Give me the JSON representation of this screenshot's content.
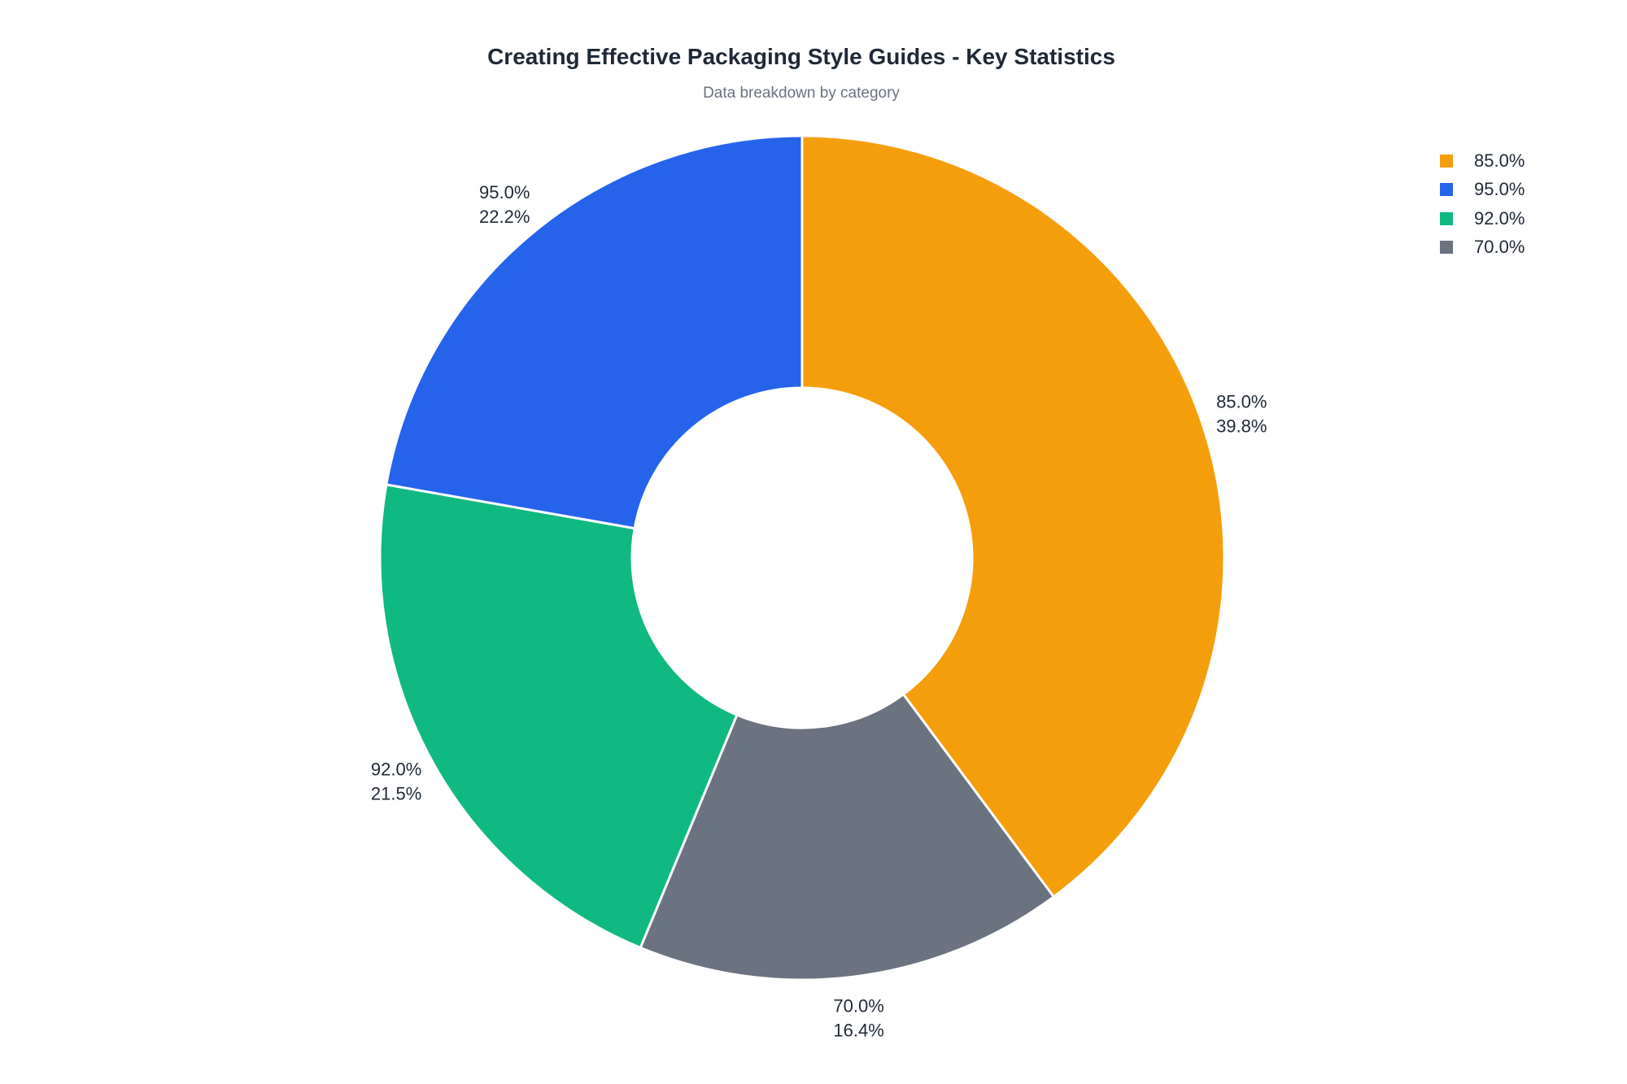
{
  "chart_data": {
    "type": "pie",
    "donut": true,
    "title": "Creating Effective Packaging Style Guides - Key Statistics",
    "subtitle": "Data breakdown by category",
    "legend_placement": "top-right",
    "slices": [
      {
        "label": "85.0%",
        "share": 39.8,
        "share_label": "39.8%",
        "color": "#f59e0b"
      },
      {
        "label": "95.0%",
        "share": 22.2,
        "share_label": "22.2%",
        "color": "#2563eb"
      },
      {
        "label": "92.0%",
        "share": 21.5,
        "share_label": "21.5%",
        "color": "#10b981"
      },
      {
        "label": "70.0%",
        "share": 16.4,
        "share_label": "16.4%",
        "color": "#6b7280"
      }
    ],
    "order": [
      "85.0%",
      "70.0%",
      "92.0%",
      "95.0%"
    ]
  }
}
